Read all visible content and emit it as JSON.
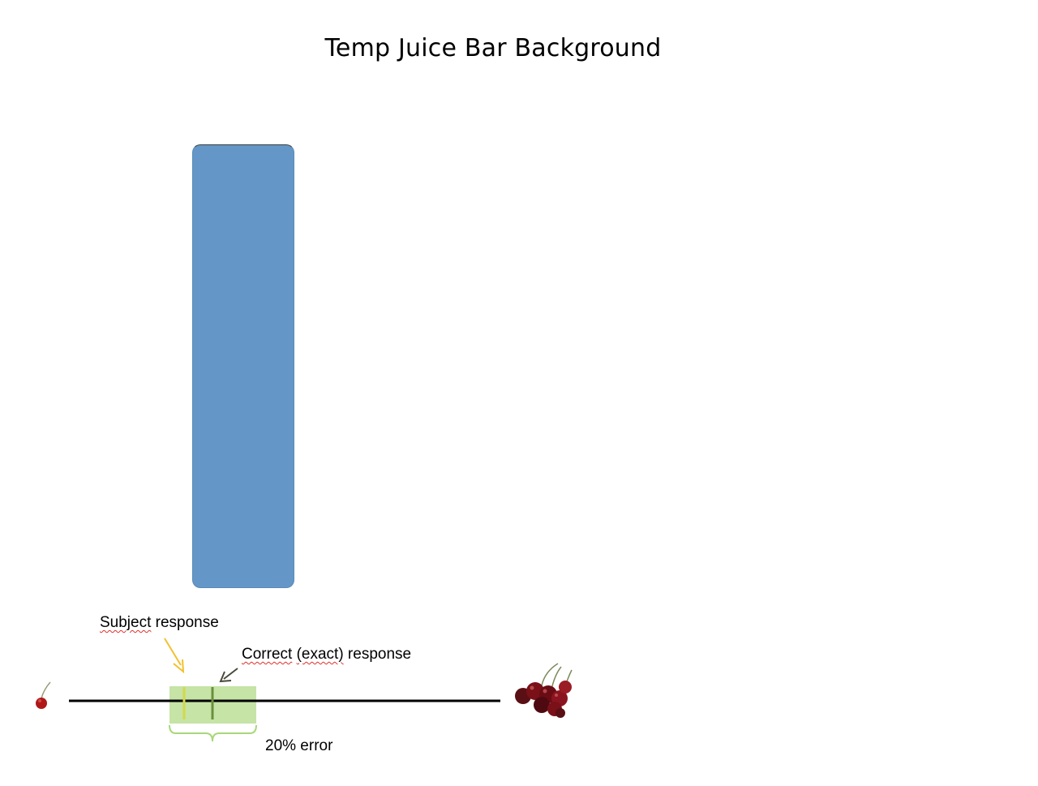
{
  "title": "Temp Juice Bar Background",
  "annotations": {
    "subject_response_word1": "Subject",
    "subject_response_word2": " response",
    "correct_response_word1": "Correct",
    "correct_response_word2": " ",
    "correct_response_word3": "(exact)",
    "correct_response_word4": " response",
    "error_band": "20% error"
  },
  "colors": {
    "juice_bar": "#6497c7",
    "error_band": "#c6e4a6",
    "subject_marker": "#d4d94a",
    "correct_marker": "#6a8f3c",
    "subject_arrow": "#f2c12e",
    "correct_arrow": "#4a4a3a",
    "bracket": "#a8d87a"
  },
  "icons": {
    "left_end": "single-cherry-icon",
    "right_end": "cherry-bunch-icon"
  }
}
